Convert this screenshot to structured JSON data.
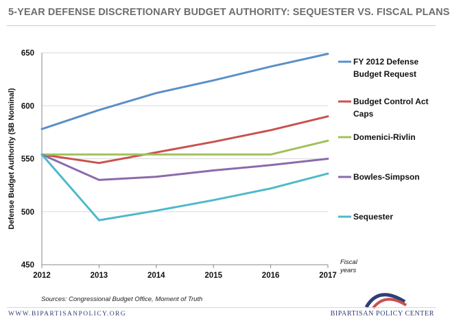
{
  "title": "5-YEAR DEFENSE DISCRETIONARY BUDGET AUTHORITY: SEQUESTER VS. FISCAL PLANS",
  "source": "Sources: Congressional Budget Office, Moment of Truth",
  "footer": {
    "url": "WWW.BIPARTISANPOLICY.ORG",
    "org": "BIPARTISAN POLICY CENTER"
  },
  "chart_data": {
    "type": "line",
    "title": "5-YEAR DEFENSE DISCRETIONARY BUDGET AUTHORITY: SEQUESTER VS. FISCAL PLANS",
    "ylabel": "Defense Budget Authority ($B Nominal)",
    "xlabel": "Fiscal years",
    "x": [
      2012,
      2013,
      2014,
      2015,
      2016,
      2017
    ],
    "ylim": [
      450,
      650
    ],
    "yticks": [
      450,
      500,
      550,
      600,
      650
    ],
    "grid": "horizontal",
    "legend": "right",
    "series": [
      {
        "name": "FY 2012 Defense Budget Request",
        "label_lines": [
          "FY 2012 Defense",
          "Budget Request"
        ],
        "color": "#5b8fc7",
        "values": [
          578,
          596,
          612,
          624,
          637,
          649
        ]
      },
      {
        "name": "Budget Control Act Caps",
        "label_lines": [
          "Budget Control Act",
          "Caps"
        ],
        "color": "#c9504d",
        "values": [
          554,
          546,
          556,
          566,
          577,
          590
        ]
      },
      {
        "name": "Domenici-Rivlin",
        "label_lines": [
          "Domenici-Rivlin"
        ],
        "color": "#9fc15a",
        "values": [
          554,
          554,
          554,
          554,
          554,
          567
        ]
      },
      {
        "name": "Bowles-Simpson",
        "label_lines": [
          "Bowles-Simpson"
        ],
        "color": "#8a6aab",
        "values": [
          554,
          530,
          533,
          539,
          544,
          550
        ]
      },
      {
        "name": "Sequester",
        "label_lines": [
          "Sequester"
        ],
        "color": "#4cb9ca",
        "values": [
          554,
          492,
          501,
          511,
          522,
          536
        ]
      }
    ]
  }
}
